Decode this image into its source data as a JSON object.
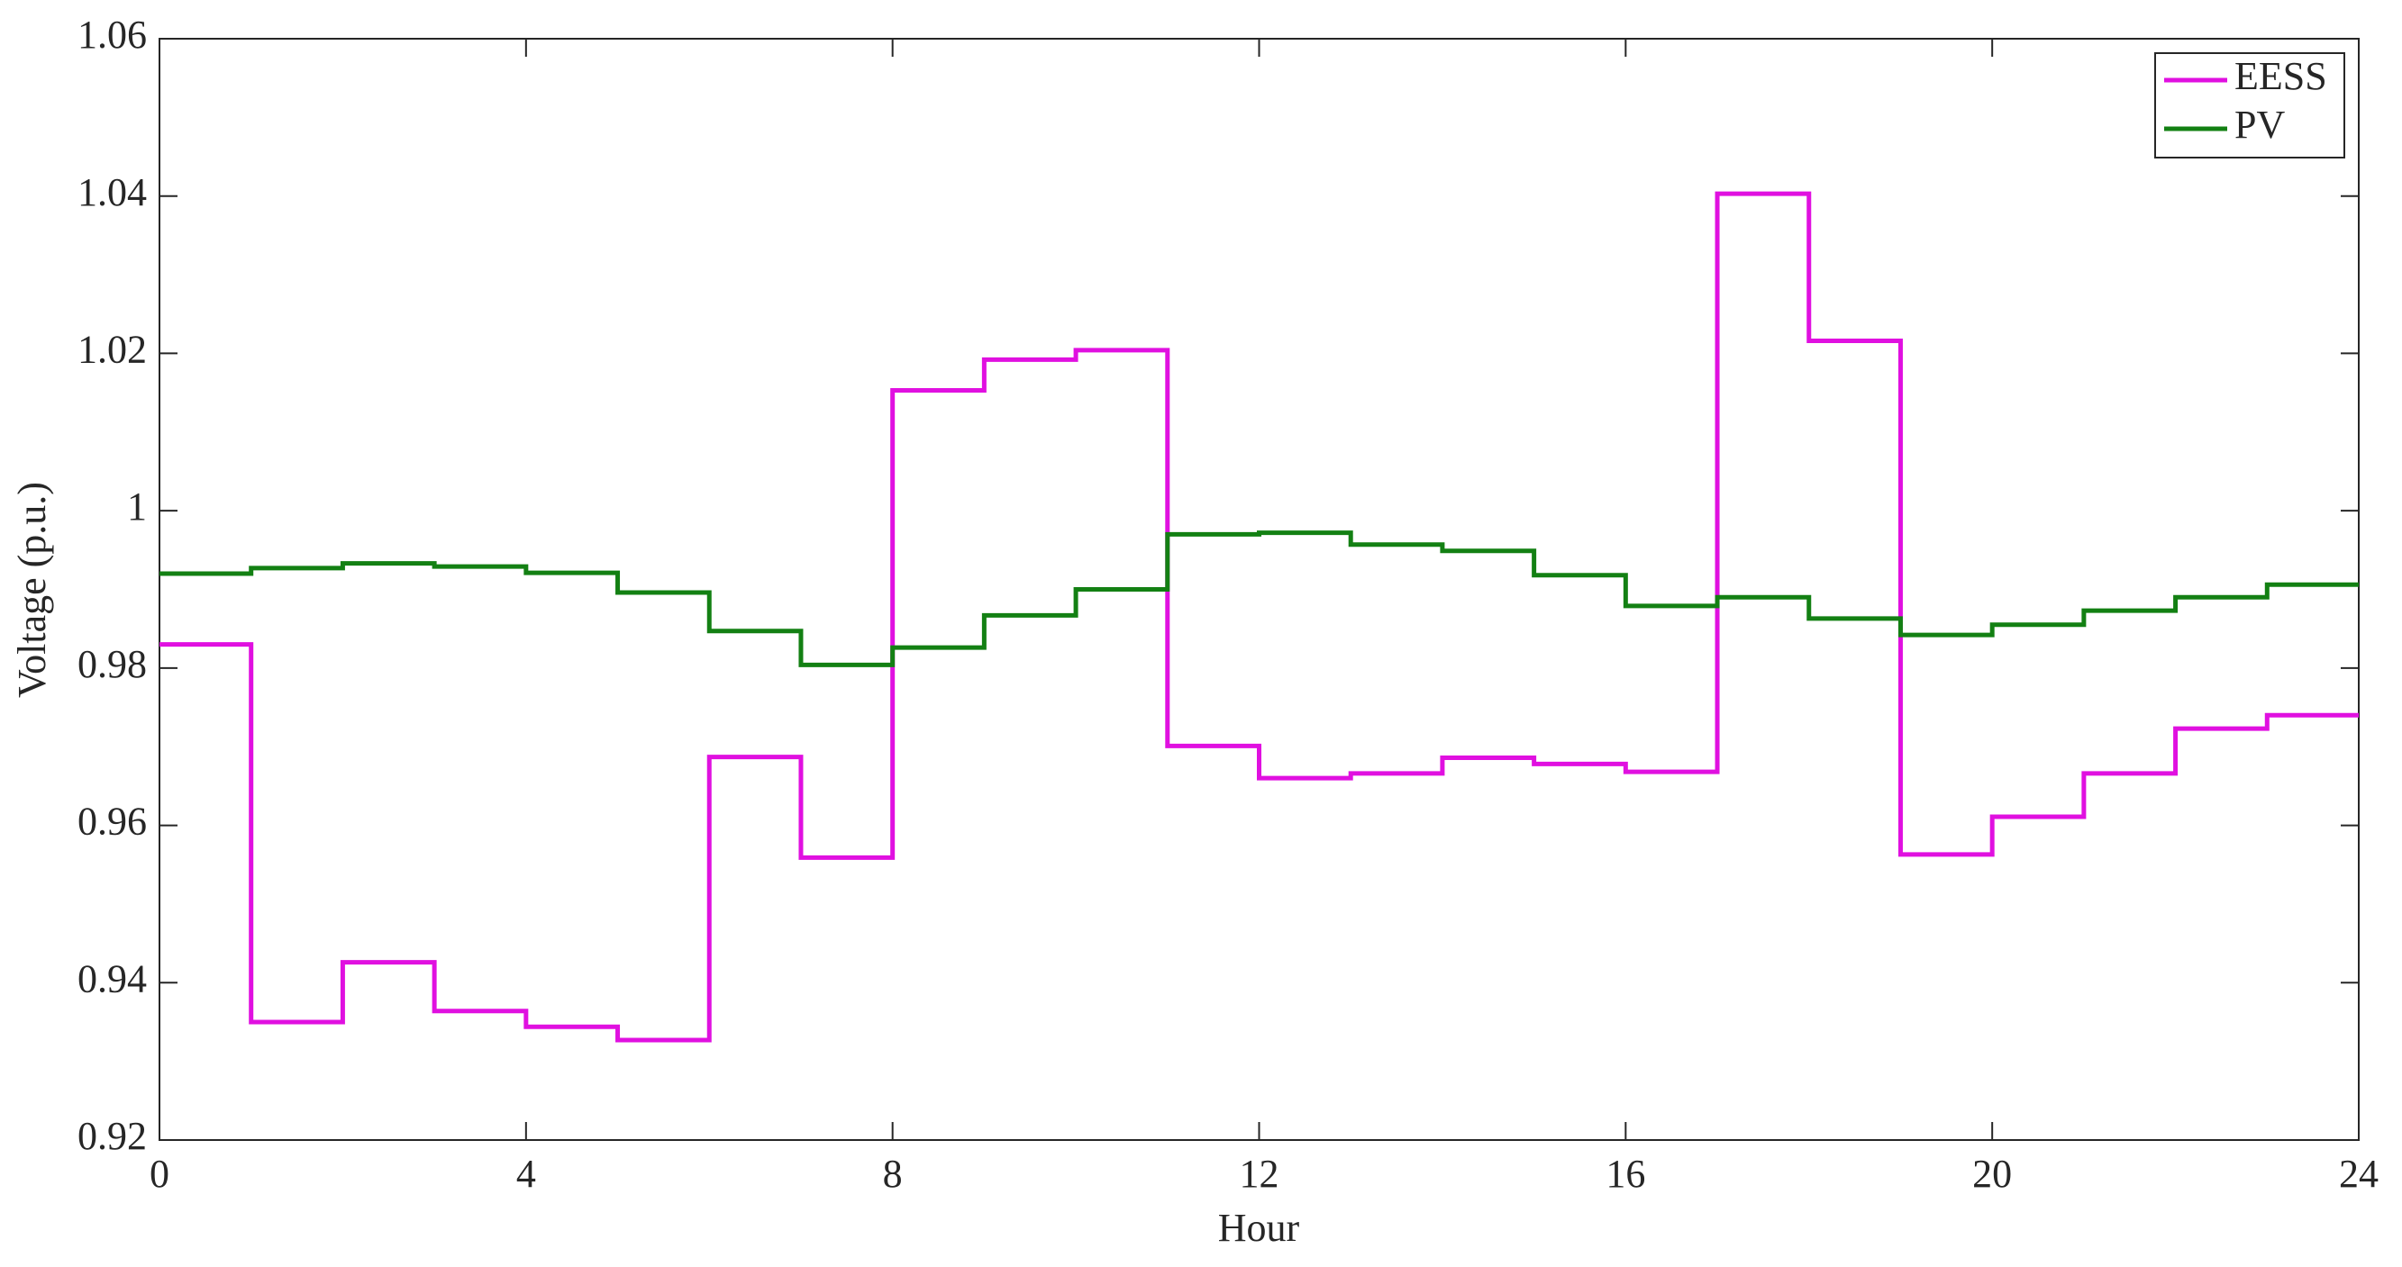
{
  "chart_data": {
    "type": "step",
    "step": "post",
    "xlabel": "Hour",
    "ylabel": "Voltage (p.u.)",
    "x": [
      0,
      1,
      2,
      3,
      4,
      5,
      6,
      7,
      8,
      9,
      10,
      11,
      12,
      13,
      14,
      15,
      16,
      17,
      18,
      19,
      20,
      21,
      22,
      23
    ],
    "series": [
      {
        "name": "EESS",
        "color": "#e010e0",
        "values": [
          0.983,
          0.935,
          0.9426,
          0.9364,
          0.9344,
          0.9327,
          0.9687,
          0.9559,
          1.0153,
          1.0192,
          1.0204,
          0.9701,
          0.966,
          0.9666,
          0.9686,
          0.9678,
          0.9668,
          1.0403,
          1.0216,
          0.9563,
          0.9611,
          0.9666,
          0.9723,
          0.974
        ]
      },
      {
        "name": "PV",
        "color": "#138013",
        "values": [
          0.992,
          0.9927,
          0.9933,
          0.9929,
          0.9921,
          0.9896,
          0.9847,
          0.9804,
          0.9826,
          0.9867,
          0.99,
          0.997,
          0.9972,
          0.9957,
          0.9949,
          0.9918,
          0.9879,
          0.989,
          0.9863,
          0.9842,
          0.9855,
          0.9873,
          0.989,
          0.9906
        ]
      }
    ],
    "xlim": [
      0,
      24
    ],
    "xticks": [
      0,
      4,
      8,
      12,
      16,
      20,
      24
    ],
    "ylim": [
      0.92,
      1.06
    ],
    "yticks": [
      0.92,
      0.94,
      0.96,
      0.98,
      1,
      1.02,
      1.04,
      1.06
    ],
    "legend": "top-right",
    "grid": false
  }
}
